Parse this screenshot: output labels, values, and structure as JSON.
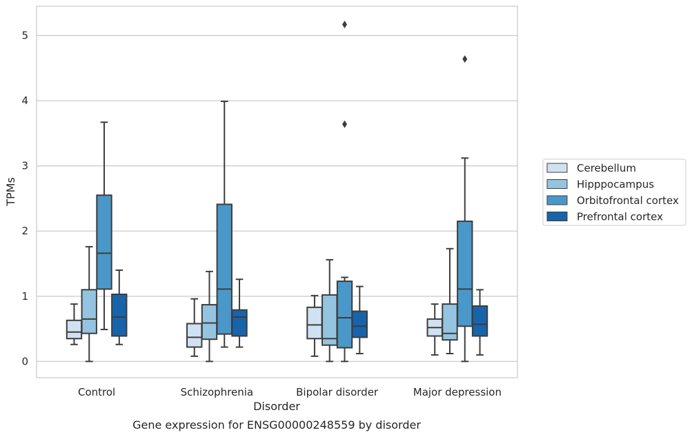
{
  "chart_data": {
    "type": "boxplot",
    "caption": "Gene expression for ENSG00000248559 by disorder",
    "xlabel": "Disorder",
    "ylabel": "TPMs",
    "ylim": [
      -0.25,
      5.45
    ],
    "yticks": [
      0,
      1,
      2,
      3,
      4,
      5
    ],
    "categories": [
      "Control",
      "Schizophrenia",
      "Bipolar disorder",
      "Major depression"
    ],
    "grid": "horizontal",
    "legend_position": "right",
    "series": [
      {
        "name": "Cerebellum",
        "color": "#d0e1f2",
        "boxes": [
          {
            "whisker_low": 0.26,
            "q1": 0.35,
            "median": 0.45,
            "q3": 0.63,
            "whisker_high": 0.88,
            "outliers": []
          },
          {
            "whisker_low": 0.08,
            "q1": 0.22,
            "median": 0.37,
            "q3": 0.58,
            "whisker_high": 0.96,
            "outliers": []
          },
          {
            "whisker_low": 0.08,
            "q1": 0.35,
            "median": 0.56,
            "q3": 0.83,
            "whisker_high": 1.01,
            "outliers": []
          },
          {
            "whisker_low": 0.1,
            "q1": 0.39,
            "median": 0.52,
            "q3": 0.65,
            "whisker_high": 0.88,
            "outliers": []
          }
        ]
      },
      {
        "name": "Hipppocampus",
        "color": "#94c4df",
        "boxes": [
          {
            "whisker_low": 0.0,
            "q1": 0.43,
            "median": 0.65,
            "q3": 1.1,
            "whisker_high": 1.76,
            "outliers": []
          },
          {
            "whisker_low": 0.0,
            "q1": 0.34,
            "median": 0.59,
            "q3": 0.87,
            "whisker_high": 1.38,
            "outliers": []
          },
          {
            "whisker_low": 0.0,
            "q1": 0.25,
            "median": 0.35,
            "q3": 1.02,
            "whisker_high": 1.56,
            "outliers": []
          },
          {
            "whisker_low": 0.12,
            "q1": 0.33,
            "median": 0.43,
            "q3": 0.88,
            "whisker_high": 1.73,
            "outliers": []
          }
        ]
      },
      {
        "name": "Orbitofrontal cortex",
        "color": "#4a98c9",
        "boxes": [
          {
            "whisker_low": 0.49,
            "q1": 1.11,
            "median": 1.66,
            "q3": 2.55,
            "whisker_high": 3.67,
            "outliers": []
          },
          {
            "whisker_low": 0.22,
            "q1": 0.42,
            "median": 1.11,
            "q3": 2.41,
            "whisker_high": 3.99,
            "outliers": []
          },
          {
            "whisker_low": 0.0,
            "q1": 0.21,
            "median": 0.67,
            "q3": 1.23,
            "whisker_high": 1.29,
            "outliers": [
              3.64,
              5.17
            ]
          },
          {
            "whisker_low": 0.0,
            "q1": 0.54,
            "median": 1.11,
            "q3": 2.15,
            "whisker_high": 3.12,
            "outliers": [
              4.64
            ]
          }
        ]
      },
      {
        "name": "Prefrontal cortex",
        "color": "#1764ab",
        "boxes": [
          {
            "whisker_low": 0.26,
            "q1": 0.39,
            "median": 0.68,
            "q3": 1.03,
            "whisker_high": 1.4,
            "outliers": []
          },
          {
            "whisker_low": 0.22,
            "q1": 0.39,
            "median": 0.68,
            "q3": 0.79,
            "whisker_high": 1.26,
            "outliers": []
          },
          {
            "whisker_low": 0.12,
            "q1": 0.37,
            "median": 0.54,
            "q3": 0.77,
            "whisker_high": 1.15,
            "outliers": []
          },
          {
            "whisker_low": 0.1,
            "q1": 0.39,
            "median": 0.57,
            "q3": 0.85,
            "whisker_high": 1.1,
            "outliers": []
          }
        ]
      }
    ]
  }
}
